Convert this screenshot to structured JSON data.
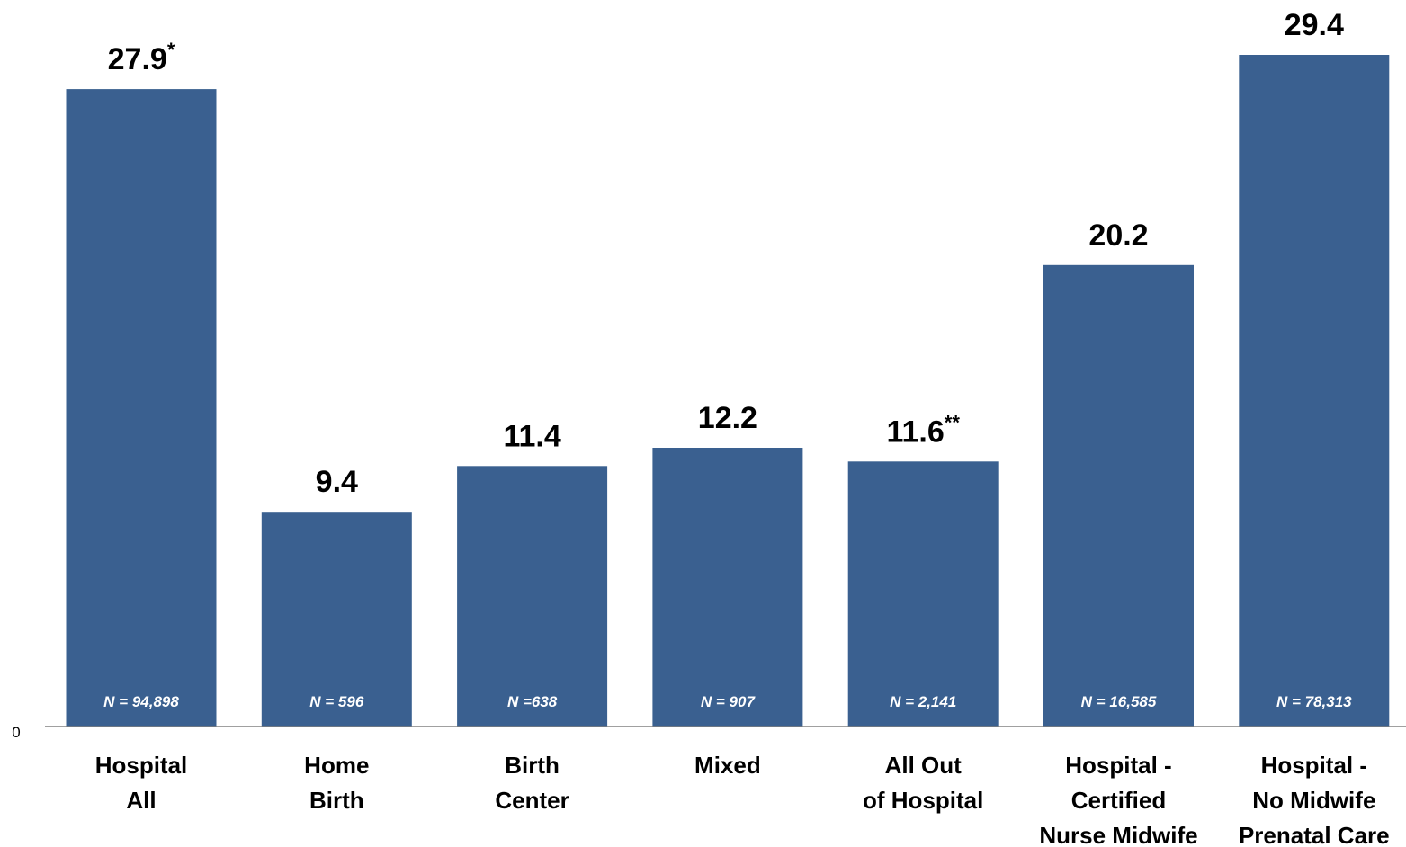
{
  "chart_data": {
    "type": "bar",
    "title": "",
    "xlabel": "",
    "ylabel": "",
    "ylim": [
      0,
      29.4
    ],
    "y_tick_labels": [
      "0"
    ],
    "grid": false,
    "bar_color": "#3A6090",
    "categories": [
      [
        "Hospital",
        "All"
      ],
      [
        "Home",
        "Birth"
      ],
      [
        "Birth",
        "Center"
      ],
      [
        "Mixed"
      ],
      [
        "All Out",
        "of Hospital"
      ],
      [
        "Hospital -",
        "Certified",
        "Nurse Midwife"
      ],
      [
        "Hospital -",
        "No Midwife",
        "Prenatal Care"
      ]
    ],
    "values": [
      27.9,
      9.4,
      11.4,
      12.2,
      11.6,
      20.2,
      29.4
    ],
    "value_labels": [
      "27.9",
      "9.4",
      "11.4",
      "12.2",
      "11.6",
      "20.2",
      "29.4"
    ],
    "value_suffixes": [
      "*",
      "",
      "",
      "",
      "**",
      "",
      ""
    ],
    "n_labels": [
      "N = 94,898",
      "N = 596",
      "N =638",
      "N = 907",
      "N = 2,141",
      "N = 16,585",
      "N = 78,313"
    ]
  }
}
